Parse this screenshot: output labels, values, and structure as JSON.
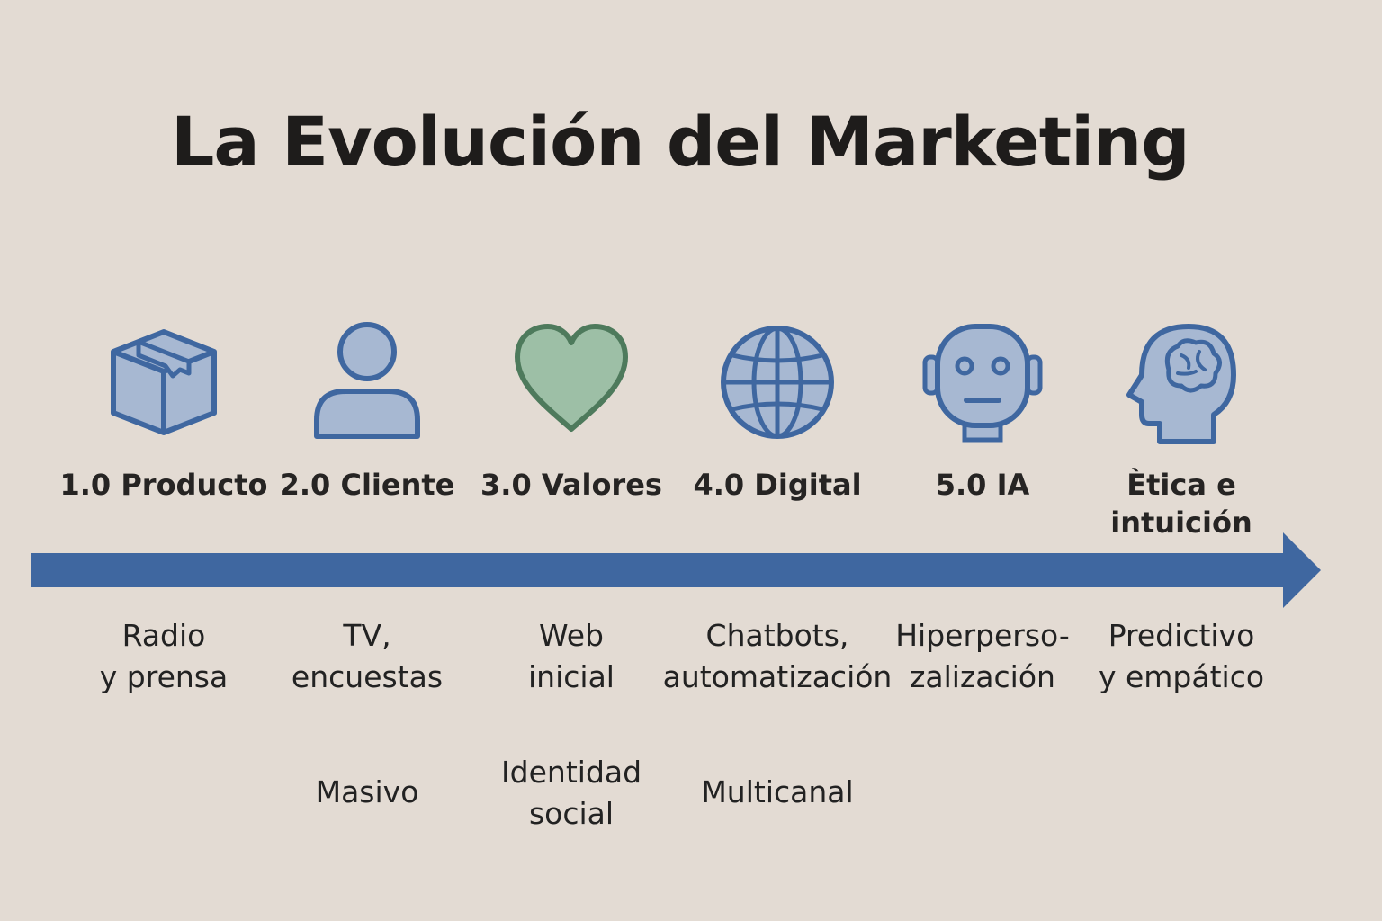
{
  "title": "La Evolución del Marketing",
  "colors": {
    "background": "#e3dbd3",
    "accent_blue": "#3f67a0",
    "icon_fill": "#a7b8d2",
    "heart_stroke": "#4e7a5c",
    "heart_fill": "#9dbfa6",
    "text": "#1e1c1b"
  },
  "stages": [
    {
      "icon": "box-icon",
      "label": "1.0 Producto",
      "channel": "Radio\ny prensa",
      "focus": ""
    },
    {
      "icon": "person-icon",
      "label": "2.0 Cliente",
      "channel": "TV,\nencuestas",
      "focus": "Masivo"
    },
    {
      "icon": "heart-icon",
      "label": "3.0 Valores",
      "channel": "Web\ninicial",
      "focus": "Identidad\nsocial"
    },
    {
      "icon": "globe-icon",
      "label": "4.0 Digital",
      "channel": "Chatbots,\nautomatización",
      "focus": "Multicanal"
    },
    {
      "icon": "robot-icon",
      "label": "5.0 IA",
      "channel": "Hiperperso-\nzalización",
      "focus": ""
    },
    {
      "icon": "brain-head-icon",
      "label": "Ètica e\nintuición",
      "channel": "Predictivo\ny empático",
      "focus": ""
    }
  ]
}
